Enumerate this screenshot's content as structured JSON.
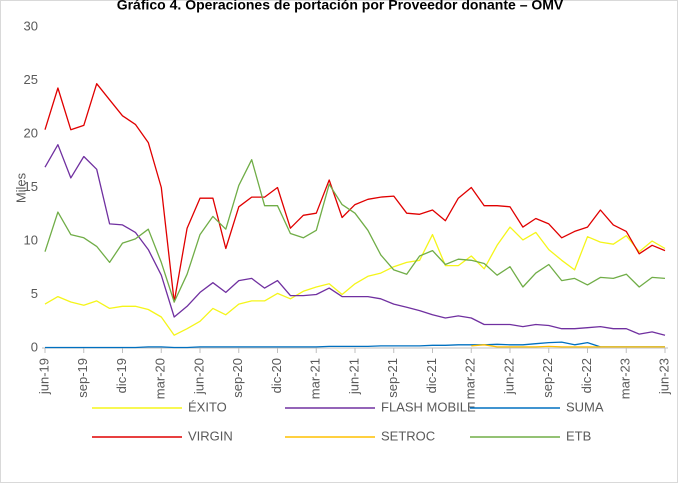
{
  "chart_data": {
    "type": "line",
    "title": "Gráfico 4. Operaciones de portación por Proveedor donante – OMV",
    "y_label": "Miles",
    "categories": [
      "jun-19",
      null,
      null,
      "sep-19",
      null,
      null,
      "dic-19",
      null,
      null,
      "mar-20",
      null,
      null,
      "jun-20",
      null,
      null,
      "sep-20",
      null,
      null,
      "dic-20",
      null,
      null,
      "mar-21",
      null,
      null,
      "jun-21",
      null,
      null,
      "sep-21",
      null,
      null,
      "dic-21",
      null,
      null,
      "mar-22",
      null,
      null,
      "jun-22",
      null,
      null,
      "sep-22",
      null,
      null,
      "dic-22",
      null,
      null,
      "mar-23",
      null,
      null,
      "jun-23"
    ],
    "series": [
      {
        "name": "ÉXITO",
        "color": "#f5f51a",
        "values": [
          4.1,
          4.8,
          4.3,
          4.0,
          4.4,
          3.7,
          3.9,
          3.9,
          3.6,
          2.9,
          1.2,
          1.8,
          2.5,
          3.7,
          3.1,
          4.1,
          4.4,
          4.4,
          5.1,
          4.6,
          5.3,
          5.7,
          6.0,
          5.0,
          6.0,
          6.7,
          7.0,
          7.6,
          8.0,
          8.2,
          10.6,
          7.7,
          7.7,
          8.6,
          7.4,
          9.6,
          11.3,
          10.1,
          10.8,
          9.2,
          8.2,
          7.3,
          10.4,
          9.9,
          9.7,
          10.5,
          9.0,
          10.0,
          9.3
        ]
      },
      {
        "name": "FLASH MOBILE",
        "color": "#7030a0",
        "values": [
          16.9,
          19.0,
          15.9,
          17.9,
          16.7,
          11.6,
          11.5,
          10.8,
          9.2,
          6.8,
          2.9,
          3.9,
          5.2,
          6.1,
          5.2,
          6.3,
          6.5,
          5.6,
          6.3,
          4.9,
          4.9,
          5.0,
          5.6,
          4.8,
          4.8,
          4.8,
          4.6,
          4.1,
          3.8,
          3.5,
          3.1,
          2.8,
          3.0,
          2.8,
          2.2,
          2.2,
          2.2,
          2.0,
          2.2,
          2.1,
          1.8,
          1.8,
          1.9,
          2.0,
          1.8,
          1.8,
          1.3,
          1.5,
          1.2
        ]
      },
      {
        "name": "SUMA",
        "color": "#0070c0",
        "values": [
          0.05,
          0.05,
          0.05,
          0.05,
          0.05,
          0.05,
          0.05,
          0.05,
          0.1,
          0.1,
          0.05,
          0.05,
          0.1,
          0.1,
          0.1,
          0.1,
          0.1,
          0.1,
          0.1,
          0.1,
          0.1,
          0.1,
          0.15,
          0.15,
          0.15,
          0.15,
          0.2,
          0.2,
          0.2,
          0.2,
          0.25,
          0.25,
          0.3,
          0.3,
          0.3,
          0.35,
          0.3,
          0.3,
          0.4,
          0.5,
          0.55,
          0.3,
          0.5,
          0.1,
          0.1,
          0.1,
          0.1,
          0.1,
          0.1
        ]
      },
      {
        "name": "VIRGIN",
        "color": "#e00000",
        "values": [
          20.4,
          24.3,
          20.4,
          20.8,
          24.7,
          23.2,
          21.7,
          20.9,
          19.2,
          15.0,
          4.3,
          11.2,
          14.0,
          14.0,
          9.3,
          13.2,
          14.1,
          14.1,
          15.0,
          11.2,
          12.4,
          12.6,
          15.7,
          12.2,
          13.4,
          13.9,
          14.1,
          14.2,
          12.6,
          12.5,
          12.9,
          11.9,
          14.0,
          15.0,
          13.3,
          13.3,
          13.2,
          11.3,
          12.1,
          11.6,
          10.3,
          10.9,
          11.3,
          12.9,
          11.5,
          10.9,
          8.8,
          9.6,
          9.1
        ]
      },
      {
        "name": "SETROC",
        "color": "#ffc000",
        "values": [
          null,
          null,
          null,
          null,
          null,
          null,
          null,
          null,
          null,
          null,
          null,
          null,
          null,
          null,
          null,
          null,
          null,
          null,
          null,
          null,
          null,
          null,
          null,
          null,
          null,
          null,
          null,
          null,
          null,
          null,
          null,
          null,
          null,
          0.2,
          0.3,
          0.1,
          0.1,
          0.1,
          0.1,
          0.15,
          0.1,
          0.1,
          0.1,
          0.1,
          0.1,
          0.1,
          0.1,
          0.1,
          0.1
        ]
      },
      {
        "name": "ETB",
        "color": "#70ad47",
        "values": [
          9.0,
          12.7,
          10.6,
          10.3,
          9.5,
          8.0,
          9.8,
          10.2,
          11.1,
          8.0,
          4.3,
          6.9,
          10.6,
          12.3,
          11.1,
          15.2,
          17.6,
          13.3,
          13.3,
          10.7,
          10.3,
          11.0,
          15.3,
          13.4,
          12.6,
          11.0,
          8.7,
          7.3,
          6.9,
          8.6,
          9.1,
          7.8,
          8.3,
          8.2,
          7.9,
          6.8,
          7.6,
          5.7,
          7.0,
          7.8,
          6.3,
          6.5,
          5.9,
          6.6,
          6.5,
          6.9,
          5.7,
          6.6,
          6.5
        ]
      }
    ],
    "ylim": [
      0,
      30
    ],
    "yticks": [
      0,
      5,
      10,
      15,
      20,
      25,
      30
    ],
    "grid": false,
    "legend": "bottom"
  }
}
